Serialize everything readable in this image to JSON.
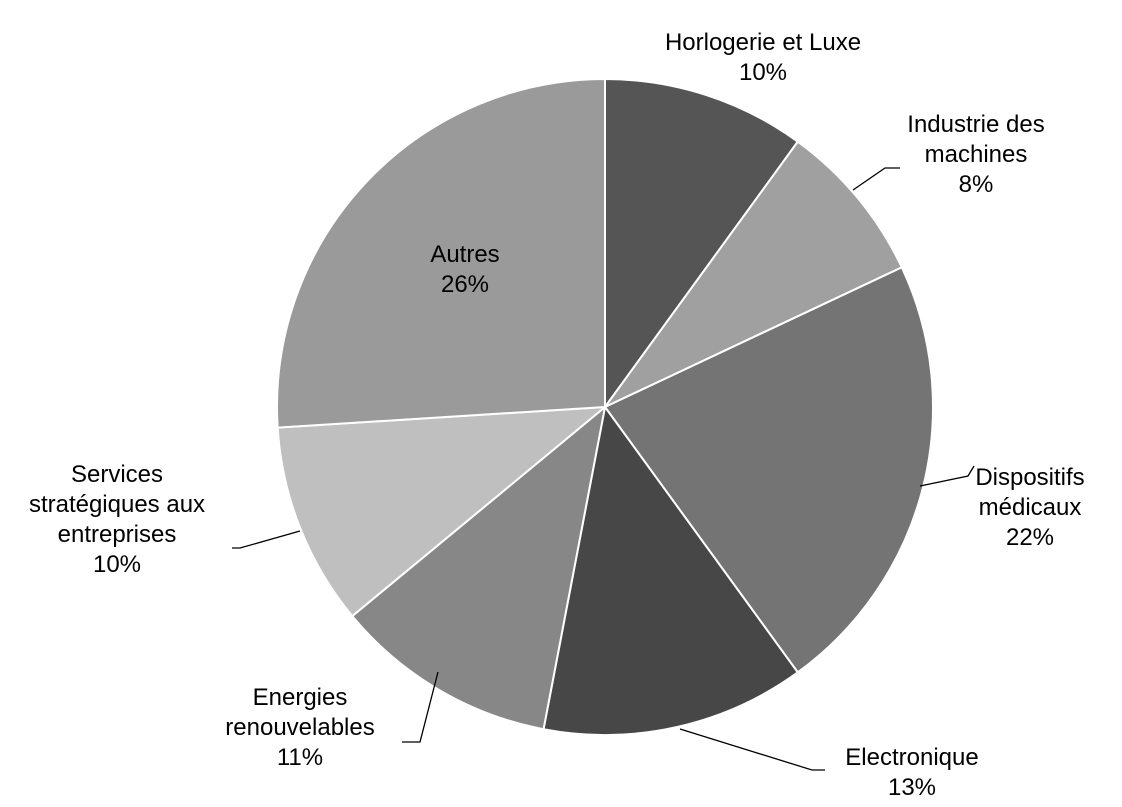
{
  "chart_data": {
    "type": "pie",
    "categories": [
      "Horlogerie et Luxe",
      "Industrie des machines",
      "Dispositifs médicaux",
      "Electronique",
      "Energies renouvelables",
      "Services stratégiques aux entreprises",
      "Autres"
    ],
    "values": [
      10,
      8,
      22,
      13,
      11,
      10,
      26
    ],
    "value_labels": [
      "10%",
      "8%",
      "22%",
      "13%",
      "11%",
      "10%",
      "26%"
    ],
    "colors": [
      "#555555",
      "#a0a0a0",
      "#747474",
      "#474747",
      "#878787",
      "#bfbfbf",
      "#9a9a9a"
    ]
  }
}
